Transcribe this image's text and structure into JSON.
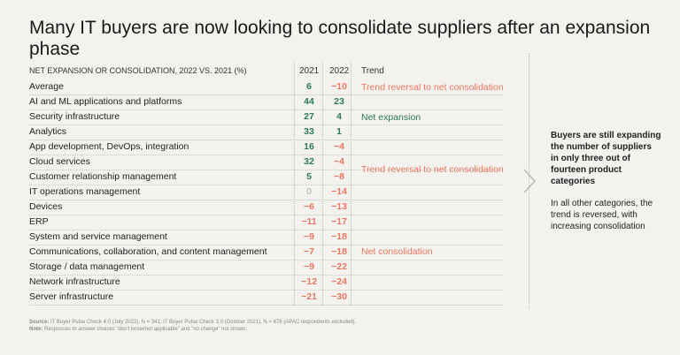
{
  "title": "Many IT buyers are now looking to consolidate suppliers after an expansion phase",
  "chart_data": {
    "type": "table",
    "header": "NET EXPANSION OR CONSOLIDATION, 2022 VS. 2021 (%)",
    "columns": [
      "2021",
      "2022",
      "Trend"
    ],
    "rows": [
      {
        "label": "Average",
        "v2021": 6,
        "v2022": -10
      },
      {
        "label": "AI and ML applications and platforms",
        "v2021": 44,
        "v2022": 23
      },
      {
        "label": "Security infrastructure",
        "v2021": 27,
        "v2022": 4
      },
      {
        "label": "Analytics",
        "v2021": 33,
        "v2022": 1
      },
      {
        "label": "App development, DevOps, integration",
        "v2021": 16,
        "v2022": -4
      },
      {
        "label": "Cloud services",
        "v2021": 32,
        "v2022": -4
      },
      {
        "label": "Customer relationship management",
        "v2021": 5,
        "v2022": -8
      },
      {
        "label": "IT operations management",
        "v2021": 0,
        "v2022": -14
      },
      {
        "label": "Devices",
        "v2021": -6,
        "v2022": -13
      },
      {
        "label": "ERP",
        "v2021": -11,
        "v2022": -17
      },
      {
        "label": "System and service management",
        "v2021": -9,
        "v2022": -18
      },
      {
        "label": "Communications, collaboration, and content management",
        "v2021": -7,
        "v2022": -18
      },
      {
        "label": "Storage / data management",
        "v2021": -9,
        "v2022": -22
      },
      {
        "label": "Network infrastructure",
        "v2021": -12,
        "v2022": -24
      },
      {
        "label": "Server infrastructure",
        "v2021": -21,
        "v2022": -30
      }
    ],
    "trends": [
      "Trend reversal to net consolidation",
      "Net expansion",
      "Trend reversal to net consolidation",
      "Net consolidation"
    ],
    "colors": {
      "positive": "#2c7a55",
      "negative": "#e8775f",
      "zero": "#aaaaaa"
    }
  },
  "source_label": "Source:",
  "source": "IT Buyer Pulse Check 4.0 (July 2022), N = 341; IT Buyer Pulse Check 3.0 (October 2021), N = 676 (APAC respondents excluded).",
  "note_label": "Note:",
  "note": "Responses to answer choices \"don't know/not applicable\" and \"no change\" not shown.",
  "side": {
    "headline": "Buyers are still expanding the number of suppliers in only three out of fourteen product categories",
    "body": "In all other categories, the trend is reversed, with increasing consolidation"
  }
}
